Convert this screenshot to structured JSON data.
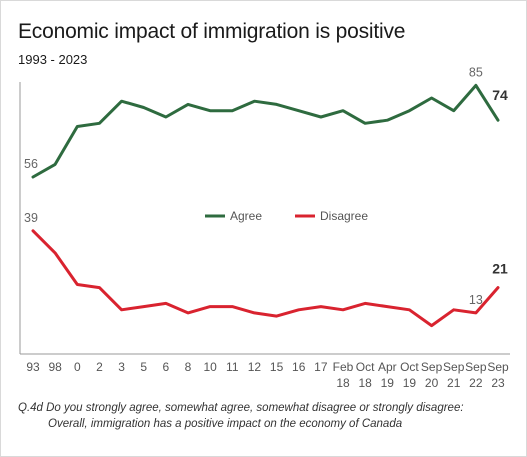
{
  "chart_data": {
    "type": "line",
    "title": "Economic impact of immigration is positive",
    "subtitle": "1993 - 2023",
    "categories": [
      [
        "93",
        ""
      ],
      [
        "98",
        ""
      ],
      [
        "0",
        ""
      ],
      [
        "2",
        ""
      ],
      [
        "3",
        ""
      ],
      [
        "5",
        ""
      ],
      [
        "6",
        ""
      ],
      [
        "8",
        ""
      ],
      [
        "10",
        ""
      ],
      [
        "11",
        ""
      ],
      [
        "12",
        ""
      ],
      [
        "15",
        ""
      ],
      [
        "16",
        ""
      ],
      [
        "17",
        ""
      ],
      [
        "Feb",
        "18"
      ],
      [
        "Oct",
        "18"
      ],
      [
        "Apr",
        "19"
      ],
      [
        "Oct",
        "19"
      ],
      [
        "Sep",
        "20"
      ],
      [
        "Sep",
        "21"
      ],
      [
        "Sep",
        "22"
      ],
      [
        "Sep",
        "23"
      ]
    ],
    "series": [
      {
        "name": "Agree",
        "color": "#2e6b3f",
        "values": [
          56,
          60,
          72,
          73,
          80,
          78,
          75,
          79,
          77,
          77,
          80,
          79,
          77,
          75,
          77,
          73,
          74,
          77,
          81,
          77,
          85,
          74
        ]
      },
      {
        "name": "Disagree",
        "color": "#d9232f",
        "values": [
          39,
          32,
          22,
          21,
          14,
          15,
          16,
          13,
          15,
          15,
          13,
          12,
          14,
          15,
          14,
          16,
          15,
          14,
          9,
          14,
          13,
          21
        ]
      }
    ],
    "data_labels": [
      {
        "series": 0,
        "index": 0,
        "text": "56",
        "bold": false
      },
      {
        "series": 0,
        "index": 20,
        "text": "85",
        "bold": false
      },
      {
        "series": 0,
        "index": 21,
        "text": "74",
        "bold": true
      },
      {
        "series": 1,
        "index": 0,
        "text": "39",
        "bold": false
      },
      {
        "series": 1,
        "index": 20,
        "text": "13",
        "bold": false
      },
      {
        "series": 1,
        "index": 21,
        "text": "21",
        "bold": true
      }
    ],
    "legend": {
      "placement": "center",
      "items": [
        "Agree",
        "Disagree"
      ]
    },
    "ylim": [
      0,
      100
    ],
    "grid": false,
    "xlabel": "",
    "ylabel": ""
  },
  "footnote": {
    "line1": "Q.4d  Do you strongly agree, somewhat agree, somewhat disagree or strongly disagree:",
    "line2": "Overall, immigration has a positive impact on the economy of Canada"
  }
}
